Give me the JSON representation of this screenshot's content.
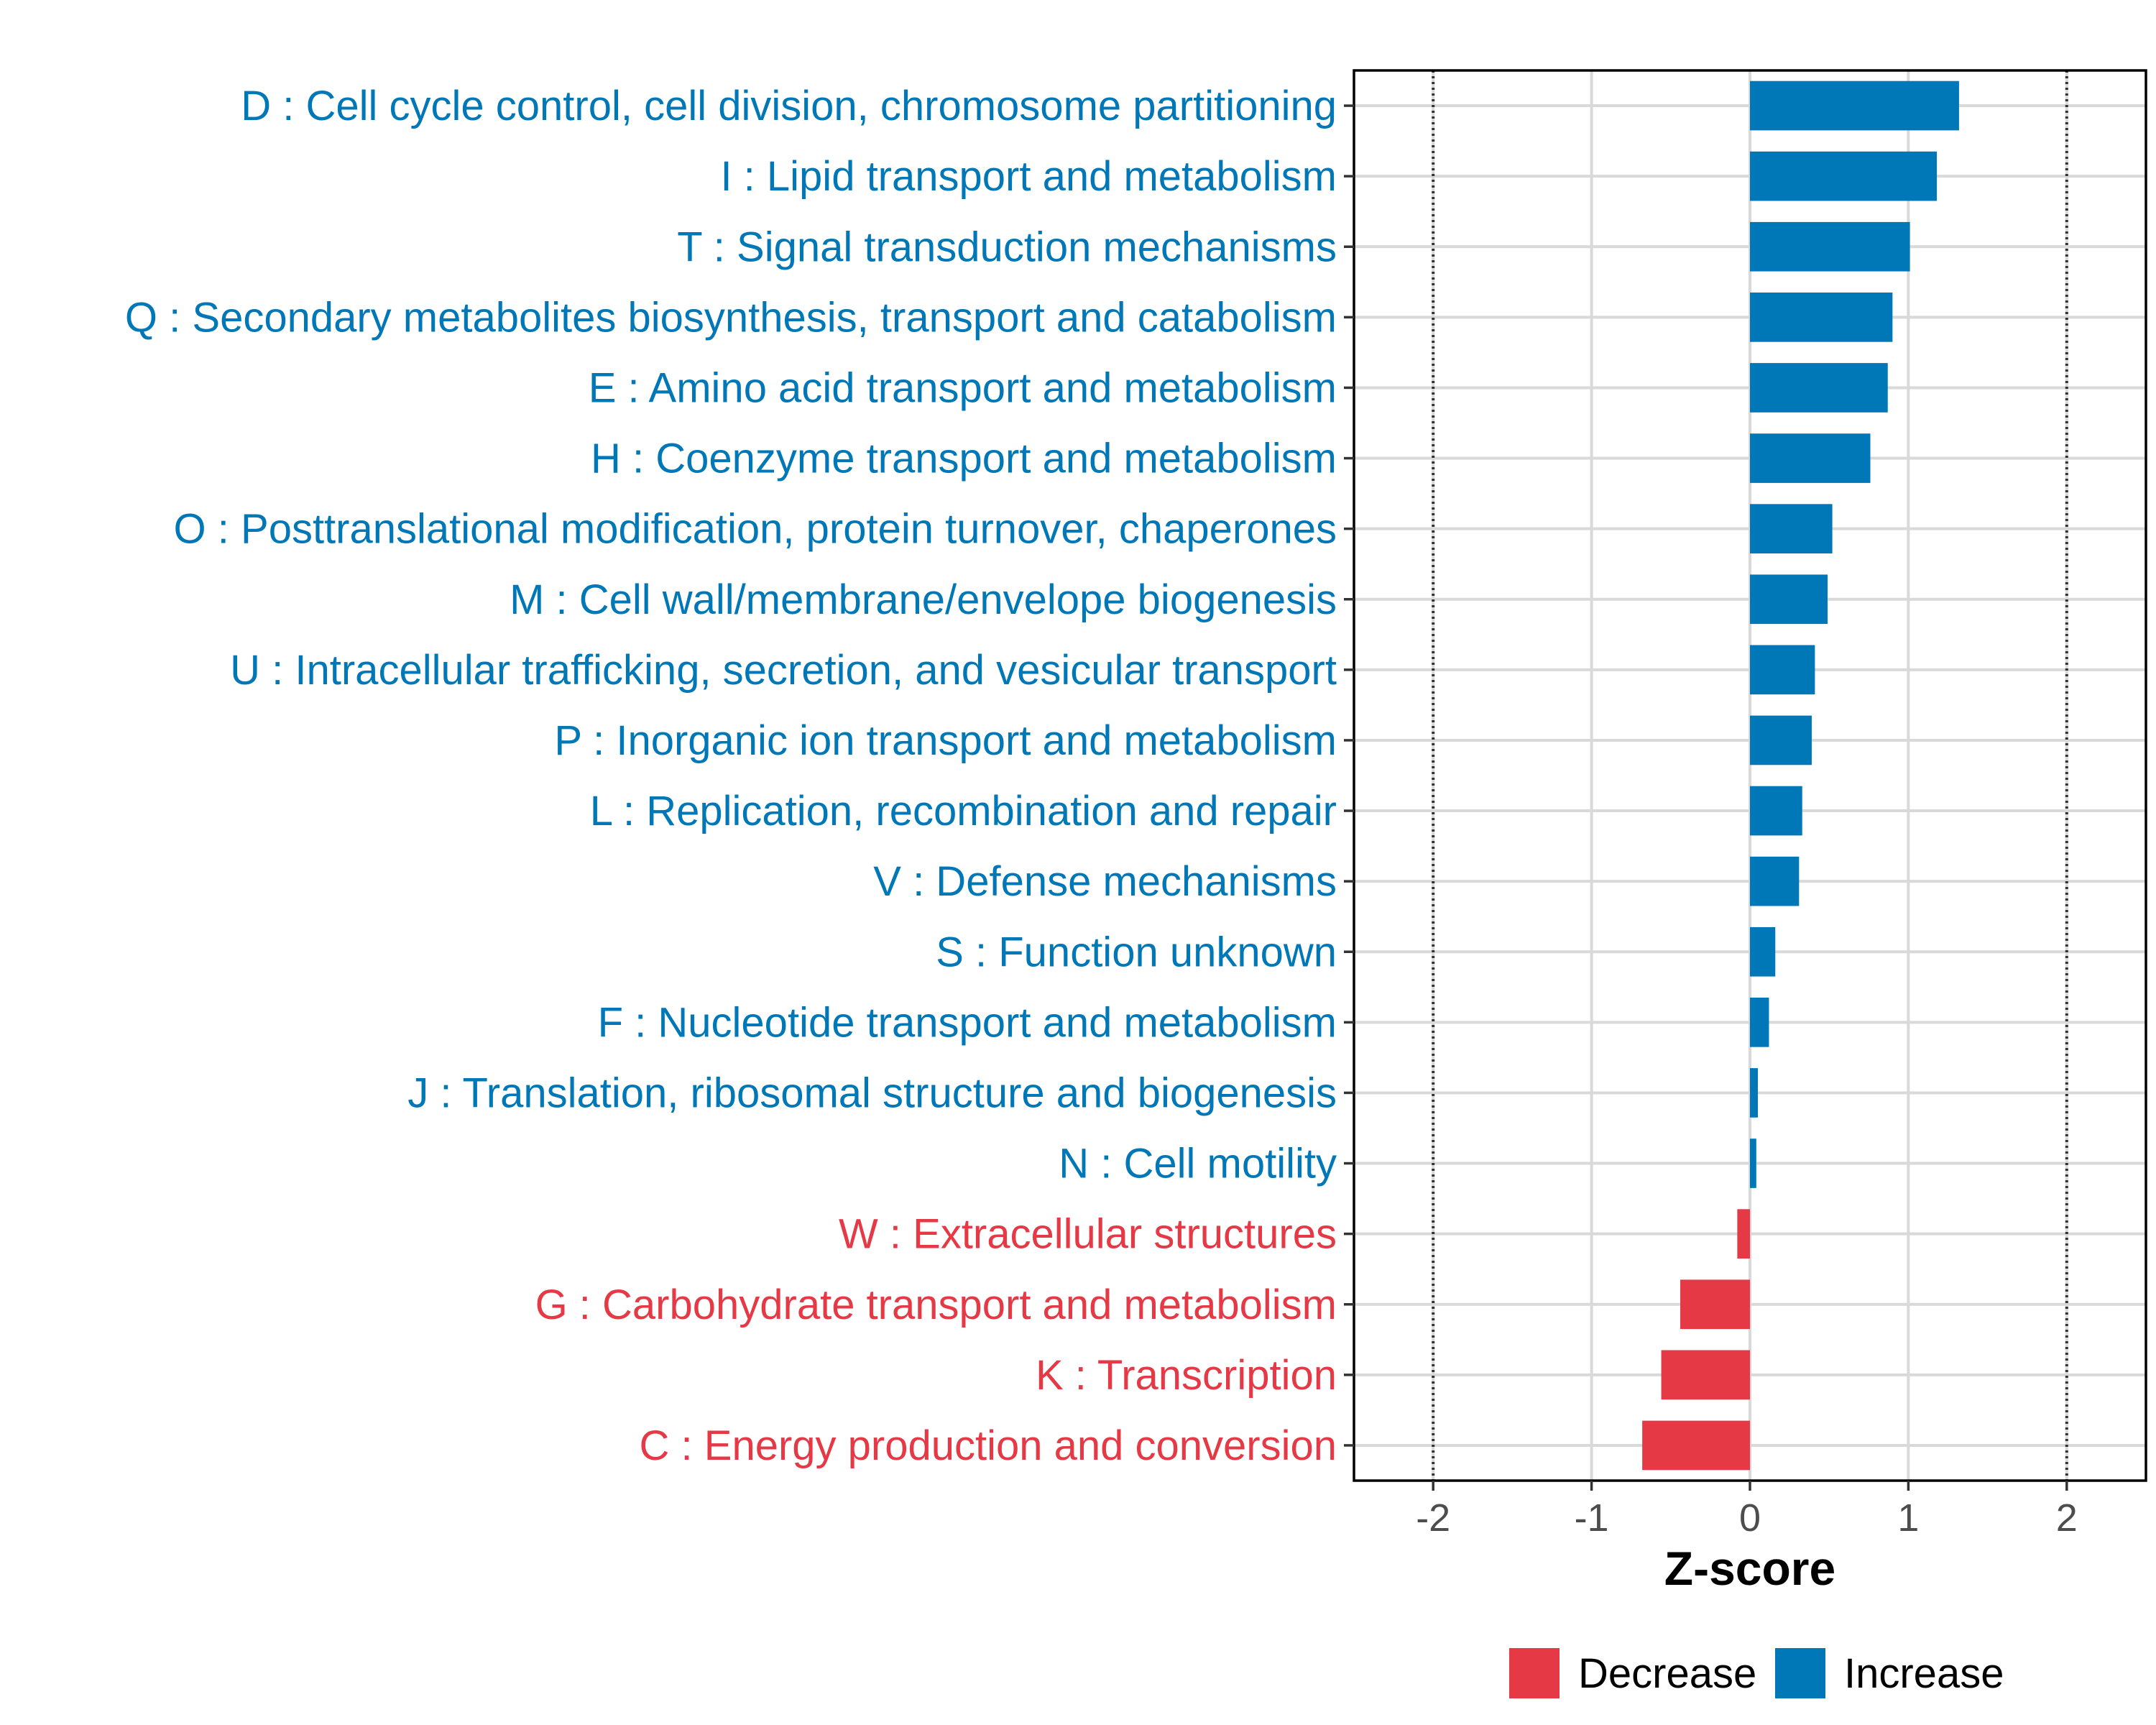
{
  "chart_data": {
    "type": "bar",
    "orientation": "horizontal",
    "title": "",
    "xlabel": "Z-score",
    "ylabel": "",
    "xlim": [
      -2.5,
      2.5
    ],
    "xticks": [
      -2,
      -1,
      0,
      1,
      2
    ],
    "xtick_labels": [
      "-2",
      "-1",
      "0",
      "1",
      "2"
    ],
    "reference_lines": [
      -2,
      2
    ],
    "grid": true,
    "colors": {
      "Decrease": "#E63946",
      "Increase": "#0077B6"
    },
    "categories": [
      "D : Cell cycle control, cell division, chromosome partitioning",
      "I : Lipid transport and metabolism",
      "T : Signal transduction mechanisms",
      "Q : Secondary metabolites biosynthesis, transport and catabolism",
      "E : Amino acid transport and metabolism",
      "H : Coenzyme transport and metabolism",
      "O : Posttranslational modification, protein turnover, chaperones",
      "M : Cell wall/membrane/envelope biogenesis",
      "U : Intracellular trafficking, secretion, and vesicular transport",
      "P : Inorganic ion transport and metabolism",
      "L : Replication, recombination and repair",
      "V : Defense mechanisms",
      "S : Function unknown",
      "F : Nucleotide transport and metabolism",
      "J : Translation, ribosomal structure and biogenesis",
      "N : Cell motility",
      "W : Extracellular structures",
      "G : Carbohydrate transport and metabolism",
      "K : Transcription",
      "C : Energy production and conversion"
    ],
    "values": [
      1.32,
      1.18,
      1.01,
      0.9,
      0.87,
      0.76,
      0.52,
      0.49,
      0.41,
      0.39,
      0.33,
      0.31,
      0.16,
      0.12,
      0.05,
      0.04,
      -0.08,
      -0.44,
      -0.56,
      -0.68
    ],
    "groups": [
      "Increase",
      "Increase",
      "Increase",
      "Increase",
      "Increase",
      "Increase",
      "Increase",
      "Increase",
      "Increase",
      "Increase",
      "Increase",
      "Increase",
      "Increase",
      "Increase",
      "Increase",
      "Increase",
      "Decrease",
      "Decrease",
      "Decrease",
      "Decrease"
    ],
    "legend": {
      "position": "bottom-right",
      "entries": [
        {
          "label": "Decrease",
          "color": "#E63946"
        },
        {
          "label": "Increase",
          "color": "#0077B6"
        }
      ]
    }
  }
}
